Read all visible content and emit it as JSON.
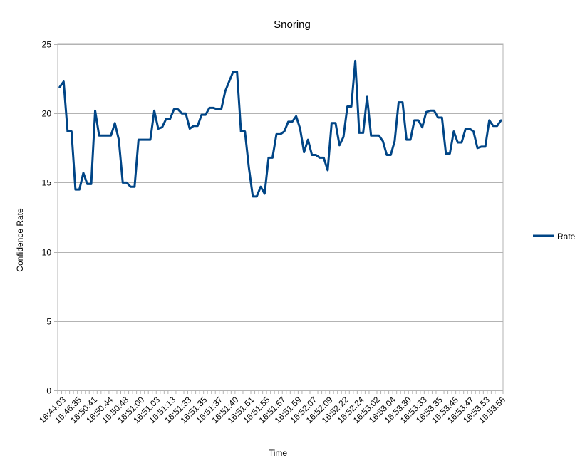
{
  "chart_data": {
    "type": "line",
    "title": "Snoring",
    "xlabel": "Time",
    "ylabel": "Confidence Rate",
    "ylim": [
      0,
      25
    ],
    "yticks": [
      0,
      5,
      10,
      15,
      20,
      25
    ],
    "grid": true,
    "legend_position": "right",
    "line_color": "#004586",
    "x_tick_labels": [
      "16:44:03",
      "16:46:35",
      "16:50:41",
      "16:50:44",
      "16:50:48",
      "16:51:00",
      "16:51:03",
      "16:51:13",
      "16:51:33",
      "16:51:35",
      "16:51:37",
      "16:51:40",
      "16:51:51",
      "16:51:55",
      "16:51:57",
      "16:51:59",
      "16:52:07",
      "16:52:09",
      "16:52:22",
      "16:52:24",
      "16:53:02",
      "16:53:04",
      "16:53:30",
      "16:53:33",
      "16:53:35",
      "16:53:45",
      "16:53:47",
      "16:53:53",
      "16:53:56"
    ],
    "series": [
      {
        "name": "Rate",
        "values": [
          21.9,
          22.3,
          18.7,
          18.7,
          14.5,
          14.5,
          15.7,
          14.9,
          14.9,
          20.2,
          18.4,
          18.4,
          18.4,
          18.4,
          19.3,
          18.1,
          15.0,
          15.0,
          14.7,
          14.7,
          18.1,
          18.1,
          18.1,
          18.1,
          20.2,
          18.9,
          19.0,
          19.6,
          19.6,
          20.3,
          20.3,
          20.0,
          20.0,
          18.9,
          19.1,
          19.1,
          19.9,
          19.9,
          20.4,
          20.4,
          20.3,
          20.3,
          21.6,
          22.3,
          23.0,
          23.0,
          18.7,
          18.7,
          16.1,
          14.0,
          14.0,
          14.7,
          14.2,
          16.8,
          16.8,
          18.5,
          18.5,
          18.7,
          19.4,
          19.4,
          19.8,
          18.9,
          17.2,
          18.1,
          17.0,
          17.0,
          16.8,
          16.8,
          15.9,
          19.3,
          19.3,
          17.7,
          18.3,
          20.5,
          20.5,
          23.8,
          18.6,
          18.6,
          21.2,
          18.4,
          18.4,
          18.4,
          18.0,
          17.0,
          17.0,
          18.0,
          20.8,
          20.8,
          18.1,
          18.1,
          19.5,
          19.5,
          19.0,
          20.1,
          20.2,
          20.2,
          19.7,
          19.7,
          17.1,
          17.1,
          18.7,
          17.9,
          17.9,
          18.9,
          18.9,
          18.7,
          17.5,
          17.6,
          17.6,
          19.5,
          19.1,
          19.1,
          19.5
        ]
      }
    ]
  }
}
